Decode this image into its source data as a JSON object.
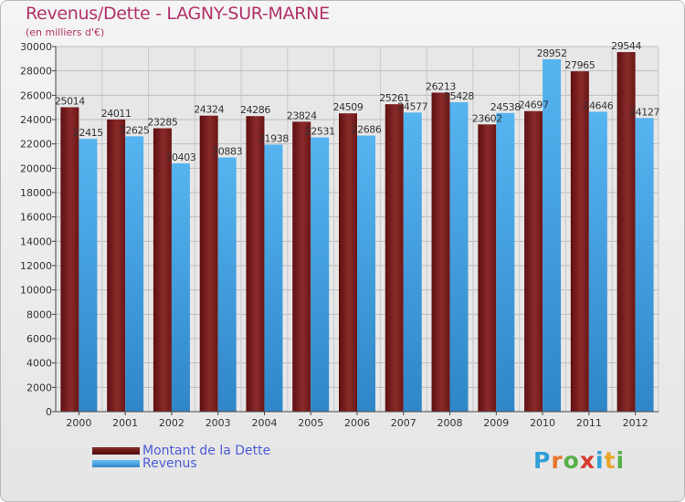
{
  "header": {
    "title": "Revenus/Dette - LAGNY-SUR-MARNE",
    "subtitle": "(en milliers d'€)"
  },
  "legend": {
    "items": [
      {
        "label": "Montant de la Dette",
        "color": "#7a1e1e"
      },
      {
        "label": "Revenus",
        "color": "#4aa8e8"
      }
    ]
  },
  "logo": {
    "text": "Proxiti",
    "letters": [
      {
        "ch": "P",
        "color": "#2f9fd6"
      },
      {
        "ch": "r",
        "color": "#e8742a"
      },
      {
        "ch": "o",
        "color": "#55b047"
      },
      {
        "ch": "x",
        "color": "#d93a2f"
      },
      {
        "ch": "i",
        "color": "#2f9fd6"
      },
      {
        "ch": "t",
        "color": "#e8a52a"
      },
      {
        "ch": "i",
        "color": "#55b047"
      }
    ]
  },
  "chart_data": {
    "type": "bar",
    "title": "Revenus/Dette - LAGNY-SUR-MARNE",
    "subtitle": "(en milliers d'€)",
    "categories": [
      "2000",
      "2001",
      "2002",
      "2003",
      "2004",
      "2005",
      "2006",
      "2007",
      "2008",
      "2009",
      "2010",
      "2011",
      "2012"
    ],
    "series": [
      {
        "name": "Montant de la Dette",
        "color": "#7a1e1e",
        "values": [
          25014,
          24011,
          23285,
          24324,
          24286,
          23824,
          24509,
          25261,
          26213,
          23602,
          24697,
          27965,
          29544
        ]
      },
      {
        "name": "Revenus",
        "color": "#4aa8e8",
        "values": [
          22415,
          22625,
          20403,
          20883,
          21938,
          22531,
          22686,
          24577,
          25428,
          24538,
          28952,
          24646,
          24127
        ]
      }
    ],
    "ylim": [
      0,
      30000
    ],
    "yticks": [
      0,
      2000,
      4000,
      6000,
      8000,
      10000,
      12000,
      14000,
      16000,
      18000,
      20000,
      22000,
      24000,
      26000,
      28000,
      30000
    ],
    "grid": true,
    "legend_position": "bottom-left"
  }
}
